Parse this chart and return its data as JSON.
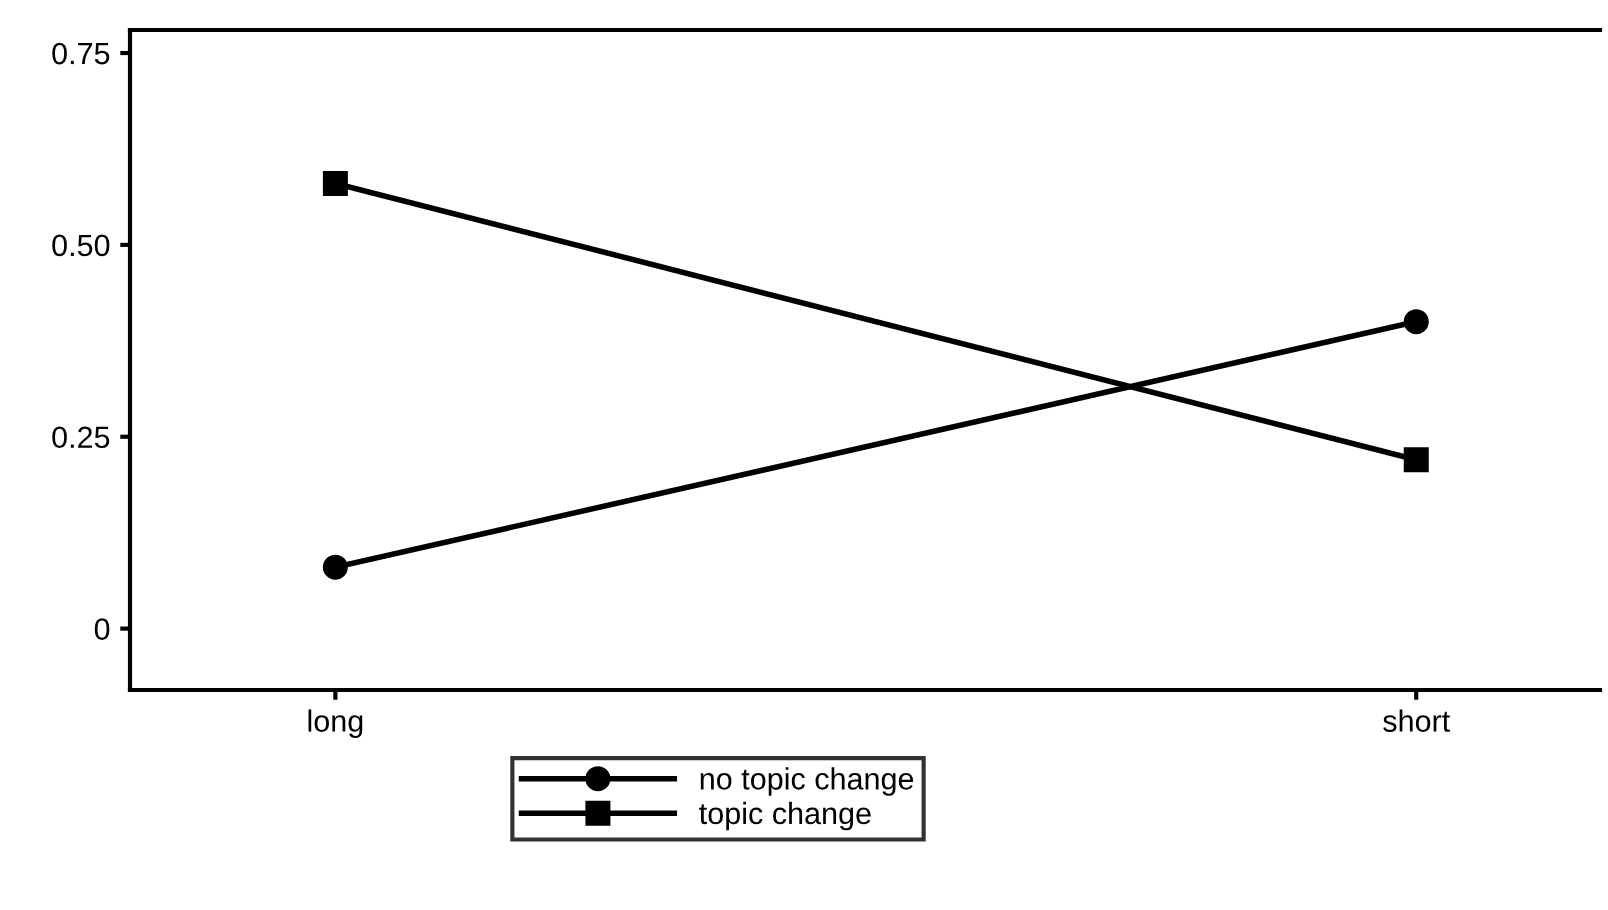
{
  "chart_data": {
    "type": "line",
    "categories": [
      "long",
      "short"
    ],
    "series": [
      {
        "name": "no topic change",
        "color": "#000000",
        "values": [
          0.08,
          0.4
        ],
        "marker": "circle"
      },
      {
        "name": "topic change",
        "color": "#000000",
        "values": [
          0.58,
          0.22
        ],
        "marker": "square"
      }
    ],
    "ylim": [
      -0.08,
      0.78
    ],
    "yticks": [
      {
        "value": 0,
        "label": "0"
      },
      0.25,
      {
        "value": 0.5,
        "label": "0.50"
      },
      0.75
    ],
    "legend": "bottom",
    "grid": false,
    "line_style": "solid"
  }
}
